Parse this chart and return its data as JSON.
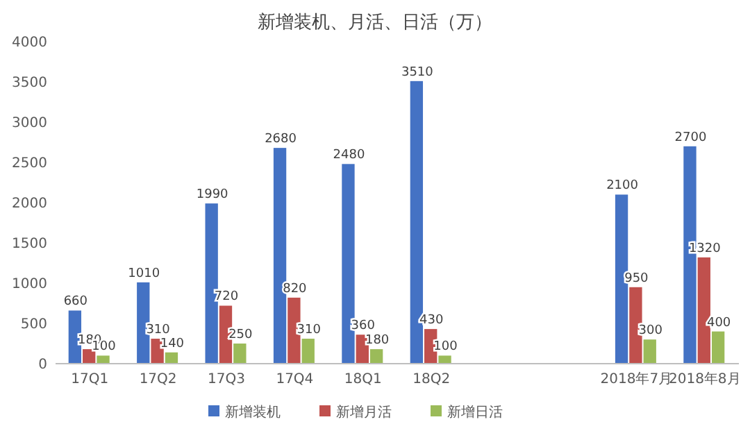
{
  "chart_data": {
    "type": "bar",
    "title": "新增装机、月活、日活（万）",
    "categories": [
      "17Q1",
      "17Q2",
      "17Q3",
      "17Q4",
      "18Q1",
      "18Q2",
      null,
      null,
      "2018年7月",
      "2018年8月"
    ],
    "series": [
      {
        "name": "新增装机",
        "color": "#4472c4",
        "values": [
          660,
          1010,
          1990,
          2680,
          2480,
          3510,
          null,
          null,
          2100,
          2700
        ]
      },
      {
        "name": "新增月活",
        "color": "#c0504d",
        "values": [
          180,
          310,
          720,
          820,
          360,
          430,
          null,
          null,
          950,
          1320
        ]
      },
      {
        "name": "新增日活",
        "color": "#9bbb59",
        "values": [
          100,
          140,
          250,
          310,
          180,
          100,
          null,
          null,
          300,
          400
        ]
      }
    ],
    "ylim": [
      0,
      4000
    ],
    "yticks": [
      0,
      500,
      1000,
      1500,
      2000,
      2500,
      3000,
      3500,
      4000
    ],
    "data_labels": true,
    "legend": "bottom"
  }
}
